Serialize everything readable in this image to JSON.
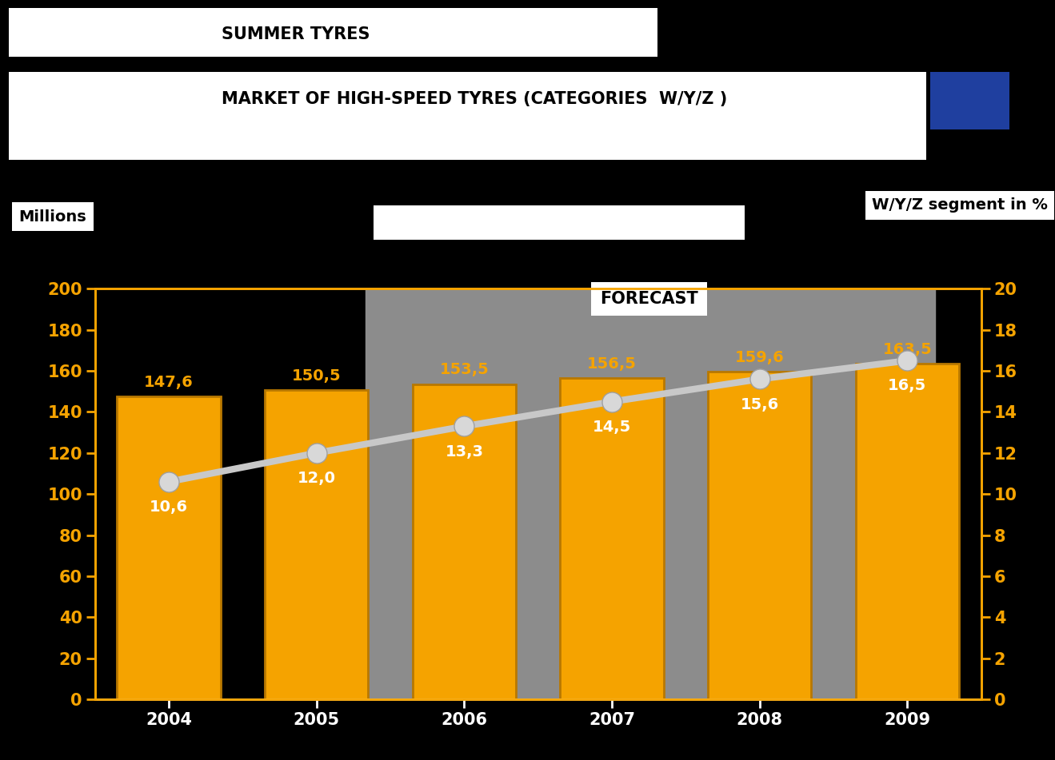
{
  "chart_data": {
    "type": "bar",
    "title": "SUMMER TYRES",
    "subtitle": "MARKET OF HIGH-SPEED TYRES (CATEGORIES  W/Y/Z )",
    "annotations": [
      "FORECAST"
    ],
    "categories": [
      "2004",
      "2005",
      "2006",
      "2007",
      "2008",
      "2009"
    ],
    "series": [
      {
        "name": "Millions",
        "type": "bar",
        "color": "#f5a300",
        "values": [
          147.6,
          150.5,
          153.5,
          156.5,
          159.6,
          163.5
        ],
        "value_labels": [
          "147,6",
          "150,5",
          "153,5",
          "156,5",
          "159,6",
          "163,5"
        ]
      },
      {
        "name": "W/Y/Z segment in %",
        "type": "line",
        "axis": "y2",
        "color": "#c8c8c8",
        "marker": "o",
        "line_style": "solid",
        "values": [
          10.6,
          12.0,
          13.3,
          14.5,
          15.6,
          16.5
        ],
        "value_labels": [
          "10,6",
          "12,0",
          "13,3",
          "14,5",
          "15,6",
          "16,5"
        ]
      }
    ],
    "ylim": [
      0,
      200
    ],
    "yticks": [
      0,
      20,
      40,
      60,
      80,
      100,
      120,
      140,
      160,
      180,
      200
    ],
    "y2lim": [
      0,
      20
    ],
    "y2ticks": [
      0,
      2,
      4,
      6,
      8,
      10,
      12,
      14,
      16,
      18,
      20
    ],
    "data_labels": true,
    "grid": false
  }
}
